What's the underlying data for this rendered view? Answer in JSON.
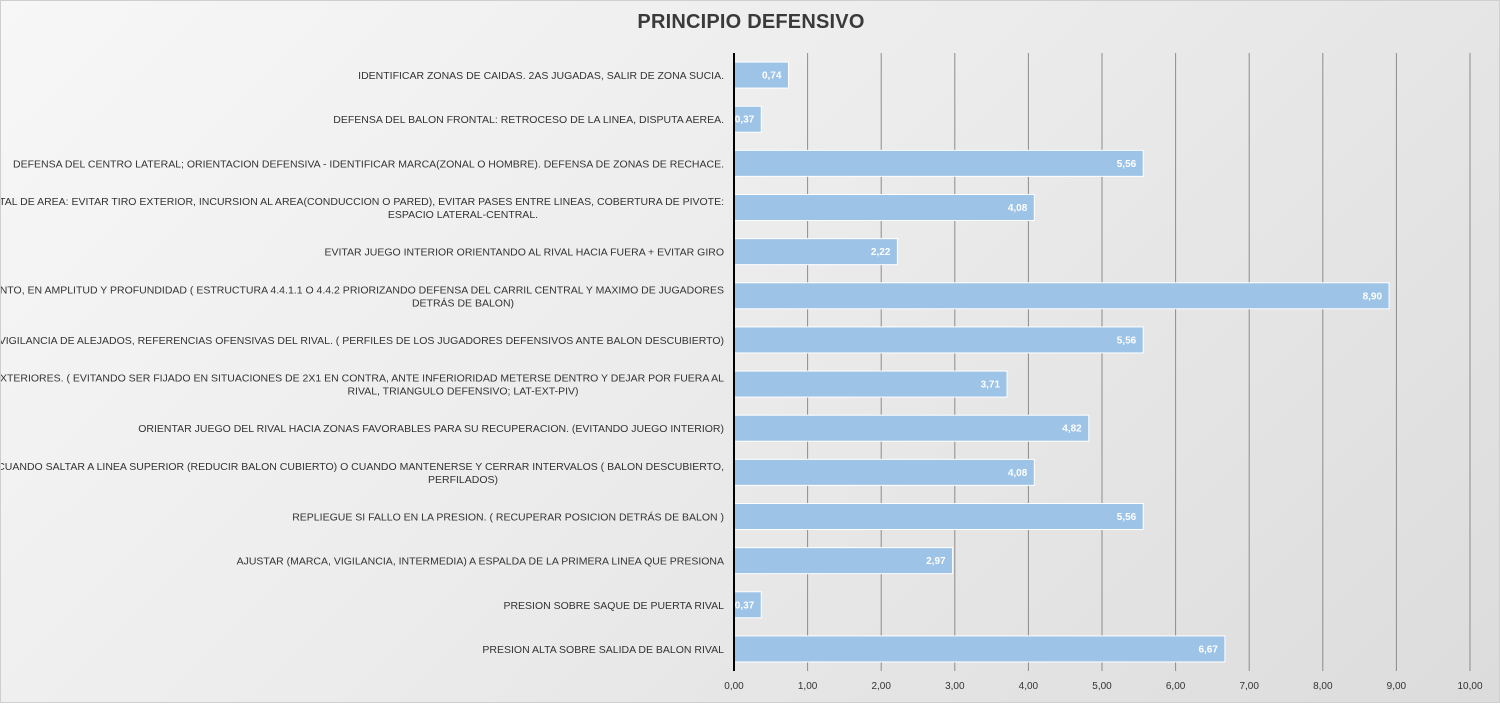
{
  "chart_data": {
    "type": "bar",
    "orientation": "horizontal",
    "title": "PRINCIPIO DEFENSIVO",
    "categories": [
      "IDENTIFICAR ZONAS DE CAIDAS. 2AS JUGADAS, SALIR DE ZONA SUCIA.",
      "DEFENSA DEL BALON FRONTAL: RETROCESO DE LA LINEA, DISPUTA AEREA.",
      "DEFENSA DEL CENTRO LATERAL; ORIENTACION DEFENSIVA - IDENTIFICAR MARCA(ZONAL O HOMBRE). DEFENSA DE ZONAS DE RECHACE.",
      "DEFENDER FRONTAL DE AREA: EVITAR TIRO EXTERIOR, INCURSION AL AREA(CONDUCCION O PARED), EVITAR PASES ENTRE LINEAS, COBERTURA DE PIVOTE: ESPACIO LATERAL-CENTRAL.",
      "EVITAR JUEGO INTERIOR ORIENTANDO AL RIVAL HACIA FUERA + EVITAR GIRO",
      "EQUIPO CORTO Y JUNTO, EN AMPLITUD Y PROFUNDIDAD ( ESTRUCTURA 4.4.1.1 O 4.4.2 PRIORIZANDO DEFENSA DEL CARRIL CENTRAL Y MAXIMO DE JUGADORES DETRÁS DE BALON)",
      "VIGILANCIA DE ALEJADOS, REFERENCIAS OFENSIVAS DEL RIVAL. ( PERFILES DE LOS JUGADORES DEFENSIVOS ANTE BALON DESCUBIERTO)",
      "DEFENSA DE PASILLOS EXTERIORES. ( EVITANDO SER FIJADO EN SITUACIONES DE 2X1 EN CONTRA, ANTE INFERIORIDAD METERSE DENTRO Y DEJAR POR FUERA AL RIVAL, TRIANGULO DEFENSIVO; LAT-EXT-PIV)",
      "ORIENTAR JUEGO DEL RIVAL HACIA ZONAS FAVORABLES PARA SU RECUPERACION. (EVITANDO JUEGO INTERIOR)",
      "IDENTIFICAR CUANDO SALTAR A LINEA SUPERIOR (REDUCIR BALON CUBIERTO) O CUANDO MANTENERSE Y CERRAR INTERVALOS ( BALON DESCUBIERTO, PERFILADOS)",
      "REPLIEGUE SI FALLO EN LA PRESION. ( RECUPERAR POSICION DETRÁS DE BALON )",
      "AJUSTAR (MARCA, VIGILANCIA, INTERMEDIA) A ESPALDA DE LA PRIMERA LINEA QUE PRESIONA",
      "PRESION SOBRE SAQUE DE PUERTA RIVAL",
      "PRESION ALTA SOBRE SALIDA DE BALON RIVAL"
    ],
    "category_lines": [
      [
        "IDENTIFICAR ZONAS DE CAIDAS. 2AS JUGADAS, SALIR DE ZONA SUCIA."
      ],
      [
        "DEFENSA DEL BALON FRONTAL: RETROCESO DE LA LINEA, DISPUTA AEREA."
      ],
      [
        "DEFENSA DEL CENTRO LATERAL; ORIENTACION DEFENSIVA - IDENTIFICAR MARCA(ZONAL O HOMBRE). DEFENSA DE ZONAS DE RECHACE."
      ],
      [
        "DEFENDER FRONTAL DE AREA: EVITAR TIRO EXTERIOR, INCURSION AL AREA(CONDUCCION O PARED), EVITAR PASES ENTRE LINEAS, COBERTURA DE PIVOTE:",
        "ESPACIO LATERAL-CENTRAL."
      ],
      [
        "EVITAR JUEGO INTERIOR ORIENTANDO AL RIVAL HACIA FUERA + EVITAR GIRO"
      ],
      [
        "EQUIPO CORTO Y JUNTO, EN AMPLITUD Y PROFUNDIDAD ( ESTRUCTURA 4.4.1.1 O 4.4.2 PRIORIZANDO DEFENSA DEL CARRIL CENTRAL Y MAXIMO DE JUGADORES",
        "DETRÁS DE BALON)"
      ],
      [
        "VIGILANCIA DE ALEJADOS, REFERENCIAS OFENSIVAS DEL RIVAL. ( PERFILES DE LOS JUGADORES DEFENSIVOS ANTE BALON DESCUBIERTO)"
      ],
      [
        "DEFENSA DE PASILLOS EXTERIORES. ( EVITANDO SER FIJADO EN SITUACIONES DE 2X1 EN CONTRA, ANTE INFERIORIDAD METERSE DENTRO Y DEJAR POR FUERA AL",
        "RIVAL, TRIANGULO DEFENSIVO; LAT-EXT-PIV)"
      ],
      [
        "ORIENTAR JUEGO DEL RIVAL HACIA ZONAS FAVORABLES PARA SU RECUPERACION. (EVITANDO JUEGO INTERIOR)"
      ],
      [
        "IDENTIFICAR CUANDO SALTAR A LINEA SUPERIOR (REDUCIR BALON CUBIERTO) O CUANDO MANTENERSE Y CERRAR INTERVALOS ( BALON DESCUBIERTO,",
        "PERFILADOS)"
      ],
      [
        "REPLIEGUE SI FALLO EN LA PRESION. ( RECUPERAR POSICION DETRÁS DE BALON )"
      ],
      [
        "AJUSTAR (MARCA, VIGILANCIA, INTERMEDIA) A ESPALDA DE LA PRIMERA LINEA QUE PRESIONA"
      ],
      [
        "PRESION SOBRE SAQUE DE PUERTA RIVAL"
      ],
      [
        "PRESION ALTA SOBRE SALIDA DE BALON RIVAL"
      ]
    ],
    "values": [
      0.74,
      0.37,
      5.56,
      4.08,
      2.22,
      8.9,
      5.56,
      3.71,
      4.82,
      4.08,
      5.56,
      2.97,
      0.37,
      6.67
    ],
    "data_labels": [
      "0,74",
      "0,37",
      "5,56",
      "4,08",
      "2,22",
      "8,90",
      "5,56",
      "3,71",
      "4,82",
      "4,08",
      "5,56",
      "2,97",
      "0,37",
      "6,67"
    ],
    "xlim": [
      0,
      10
    ],
    "x_ticks": [
      0,
      1,
      2,
      3,
      4,
      5,
      6,
      7,
      8,
      9,
      10
    ],
    "x_tick_labels": [
      "0,00",
      "1,00",
      "2,00",
      "3,00",
      "4,00",
      "5,00",
      "6,00",
      "7,00",
      "8,00",
      "9,00",
      "10,00"
    ],
    "xlabel": "",
    "ylabel": "",
    "grid": "vertical",
    "legend": "none",
    "bar_color": "#9dc3e6",
    "grid_color": "#8c8c8c",
    "axis_color": "#000000"
  }
}
